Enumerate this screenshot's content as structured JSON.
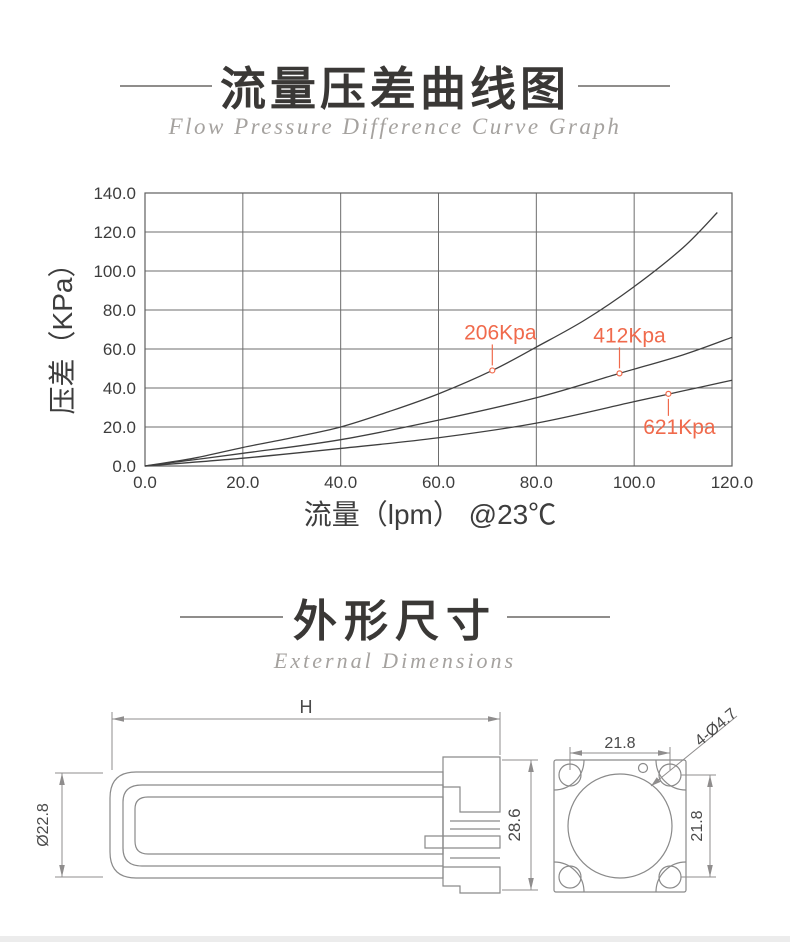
{
  "section1": {
    "title": "流量压差曲线图",
    "subtitle": "Flow Pressure Difference Curve Graph"
  },
  "chart_data": {
    "type": "line",
    "xlabel": "流量（lpm） @23℃",
    "ylabel": "压差（KPa）",
    "xlim": [
      0,
      120
    ],
    "ylim": [
      0,
      140
    ],
    "xticks": [
      "0.0",
      "20.0",
      "40.0",
      "60.0",
      "80.0",
      "100.0",
      "120.0"
    ],
    "yticks": [
      "0.0",
      "20.0",
      "40.0",
      "60.0",
      "80.0",
      "100.0",
      "120.0",
      "140.0"
    ],
    "grid": true,
    "legend_position": "none",
    "series": [
      {
        "name": "206Kpa",
        "x": [
          0,
          10,
          20,
          30,
          40,
          50,
          60,
          71,
          80,
          90,
          100,
          110,
          117
        ],
        "y": [
          0,
          4,
          9.5,
          14.5,
          20,
          28,
          37,
          49,
          61,
          75,
          92,
          112,
          130
        ]
      },
      {
        "name": "412Kpa",
        "x": [
          0,
          20,
          40,
          60,
          80,
          97,
          110,
          120
        ],
        "y": [
          0,
          6.5,
          13.5,
          23.5,
          35,
          47.5,
          57,
          66
        ]
      },
      {
        "name": "621Kpa",
        "x": [
          0,
          20,
          40,
          60,
          80,
          100,
          110,
          120
        ],
        "y": [
          0,
          4,
          9,
          14.5,
          22,
          33,
          38.5,
          44
        ]
      }
    ],
    "annotations": [
      {
        "label": "206Kpa",
        "x": 71,
        "y": 49,
        "side": "above",
        "dx": 8
      },
      {
        "label": "412Kpa",
        "x": 97,
        "y": 47.5,
        "side": "above",
        "dx": 10
      },
      {
        "label": "621Kpa",
        "x": 107,
        "y": 37,
        "side": "below",
        "dx": 11
      }
    ],
    "annotation_color": "#f06a4c",
    "curve_color": "#3f3f3f",
    "grid_color": "#6d6d6d"
  },
  "section2": {
    "title": "外形尺寸",
    "subtitle": "External Dimensions"
  },
  "drawing": {
    "dim_length": "H",
    "dim_diameter": "Ø22.8",
    "dim_flange_height": "28.6",
    "dim_hole_spacing_top": "21.8",
    "dim_hole_spacing_right": "21.8",
    "dim_holes": "4-Ø4.7"
  }
}
